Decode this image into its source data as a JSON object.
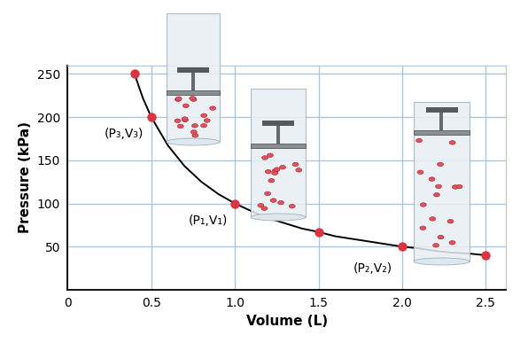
{
  "chart_data": {
    "type": "line",
    "x_label": "Volume (L)",
    "y_label": "Pressure (kPa)",
    "xlim": [
      0,
      2.62
    ],
    "ylim": [
      0,
      260
    ],
    "xticks": [
      0,
      0.5,
      {
        "value": 1.0,
        "label": "1.0"
      },
      1.5,
      {
        "value": 2.0,
        "label": "2.0"
      },
      2.5
    ],
    "yticks": [
      50,
      100,
      150,
      200,
      250
    ],
    "grid": true,
    "series": [
      {
        "type": "line",
        "color": "#000000",
        "line_style": "solid",
        "x": [
          0.4,
          0.45,
          0.5,
          0.6,
          0.7,
          0.8,
          0.9,
          1.0,
          1.1,
          1.2,
          1.3,
          1.4,
          1.5,
          1.6,
          1.7,
          1.8,
          1.9,
          2.0,
          2.1,
          2.2,
          2.3,
          2.4,
          2.5
        ],
        "values": [
          250,
          222,
          200,
          167,
          143,
          125,
          111,
          100,
          91,
          83,
          77,
          71,
          67,
          62,
          59,
          56,
          53,
          50,
          48,
          45,
          43,
          42,
          40
        ]
      },
      {
        "type": "scatter",
        "color": "#d9343f",
        "marker": "o",
        "x": [
          0.4,
          0.5,
          1.0,
          1.5,
          2.0,
          2.5
        ],
        "values": [
          250,
          200,
          100,
          67,
          50,
          40
        ]
      }
    ],
    "annotations": [
      {
        "text": "(P₃,V₃)",
        "x": 0.5,
        "y": 200
      },
      {
        "text": "(P₁,V₁)",
        "x": 1.0,
        "y": 100
      },
      {
        "text": "(P₂,V₂)",
        "x": 2.0,
        "y": 50
      }
    ]
  }
}
